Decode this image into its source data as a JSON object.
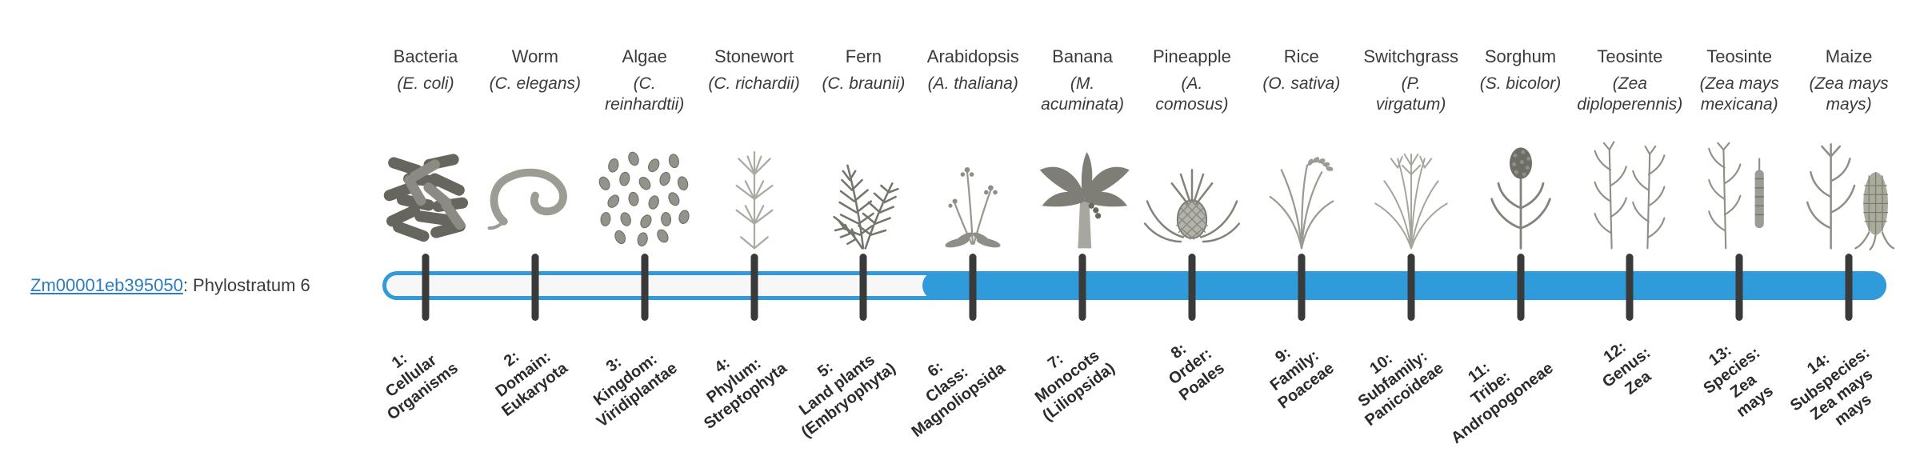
{
  "gene": {
    "id": "Zm00001eb395050",
    "label_suffix": ": Phylostratum 6",
    "phylostratum": 6
  },
  "colors": {
    "bar_fill": "#2F9BDB",
    "bar_track": "#F7F7F7",
    "tick": "#3a3a3a",
    "link": "#2D7DBF"
  },
  "bar": {
    "filled_from_phylostratum": 6,
    "total_phylostrata": 14
  },
  "taxa": [
    {
      "name": "Bacteria",
      "sci_name": "(E. coli)",
      "icon": "bacteria-icon",
      "phylostratum_label": "1:\nCellular\nOrganisms"
    },
    {
      "name": "Worm",
      "sci_name": "(C. elegans)",
      "icon": "worm-icon",
      "phylostratum_label": "2:\nDomain:\nEukaryota"
    },
    {
      "name": "Algae",
      "sci_name": "(C.\nreinhardtii)",
      "icon": "algae-icon",
      "phylostratum_label": "3:\nKingdom:\nViridiplantae"
    },
    {
      "name": "Stonewort",
      "sci_name": "(C. richardii)",
      "icon": "stonewort-icon",
      "phylostratum_label": "4:\nPhylum:\nStreptophyta"
    },
    {
      "name": "Fern",
      "sci_name": "(C. braunii)",
      "icon": "fern-icon",
      "phylostratum_label": "5:\nLand plants\n(Embryophyta)"
    },
    {
      "name": "Arabidopsis",
      "sci_name": "(A. thaliana)",
      "icon": "arabidopsis-icon",
      "phylostratum_label": "6:\nClass:\nMagnoliopsida"
    },
    {
      "name": "Banana",
      "sci_name": "(M.\nacuminata)",
      "icon": "banana-icon",
      "phylostratum_label": "7:\nMonocots\n(Liliopsida)"
    },
    {
      "name": "Pineapple",
      "sci_name": "(A.\ncomosus)",
      "icon": "pineapple-icon",
      "phylostratum_label": "8:\nOrder:\nPoales"
    },
    {
      "name": "Rice",
      "sci_name": "(O. sativa)",
      "icon": "rice-icon",
      "phylostratum_label": "9:\nFamily:\nPoaceae"
    },
    {
      "name": "Switchgrass",
      "sci_name": "(P.\nvirgatum)",
      "icon": "switchgrass-icon",
      "phylostratum_label": "10:\nSubfamily:\nPanicoideae"
    },
    {
      "name": "Sorghum",
      "sci_name": "(S. bicolor)",
      "icon": "sorghum-icon",
      "phylostratum_label": "11:\nTribe:\nAndropogoneae"
    },
    {
      "name": "Teosinte",
      "sci_name": "(Zea\ndiploperennis)",
      "icon": "teosinte-diploperennis-icon",
      "phylostratum_label": "12:\nGenus:\nZea"
    },
    {
      "name": "Teosinte",
      "sci_name": "(Zea mays\nmexicana)",
      "icon": "teosinte-mexicana-icon",
      "phylostratum_label": "13:\nSpecies:\nZea\nmays"
    },
    {
      "name": "Maize",
      "sci_name": "(Zea mays\nmays)",
      "icon": "maize-icon",
      "phylostratum_label": "14:\nSubspecies:\nZea mays\nmays"
    }
  ]
}
